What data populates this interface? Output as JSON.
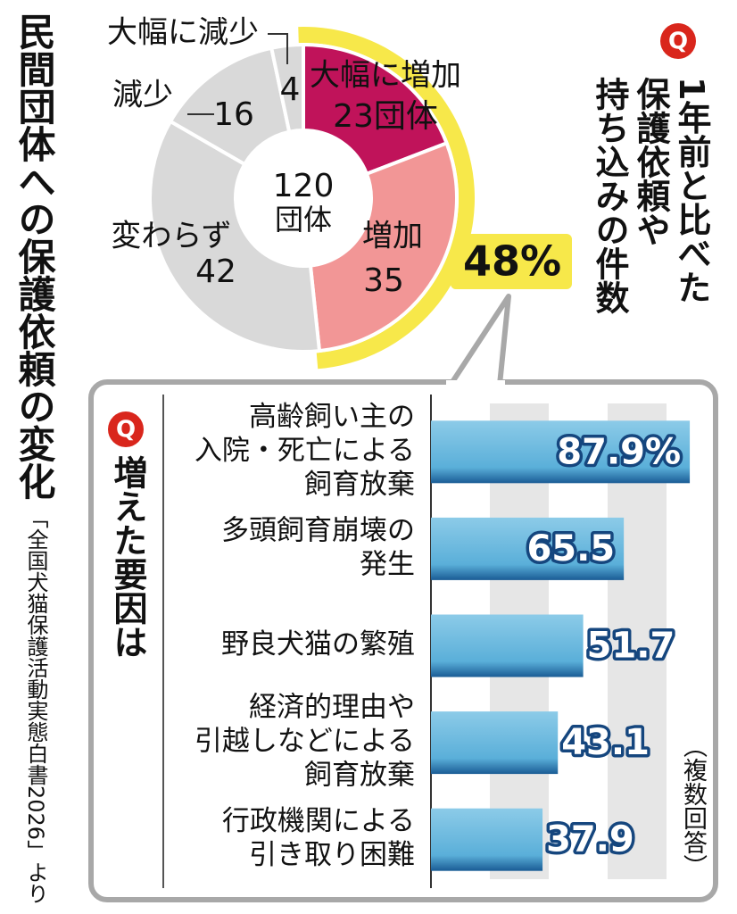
{
  "title": "民間団体への保護依頼の変化",
  "source": "「全国犬猫保護活動実態白書2026」より",
  "question_marker": "Q",
  "chart_data": [
    {
      "type": "pie",
      "title": [
        "1年前と比べた",
        "保護依頼や",
        "持ち込みの件数"
      ],
      "total": "120",
      "total_unit": "団体",
      "categories": [
        "大幅に増加",
        "増加",
        "変わらず",
        "減少",
        "大幅に減少"
      ],
      "values": [
        23,
        35,
        42,
        16,
        4
      ],
      "value_labels": [
        "23団体",
        "35",
        "42",
        "16",
        "4"
      ],
      "colors": [
        "#c0135a",
        "#f29696",
        "#d9d9d9",
        "#d9d9d9",
        "#d9d9d9"
      ],
      "highlight_label": "48%"
    },
    {
      "type": "bar",
      "horizontal": true,
      "title": "増えた要因は",
      "note": "（複数回答）",
      "categories": [
        [
          "高齢飼い主の",
          "入院・死亡による",
          "飼育放棄"
        ],
        [
          "多頭飼育崩壊の",
          "発生"
        ],
        [
          "野良犬猫の繁殖"
        ],
        [
          "経済的理由や",
          "引越しなどによる",
          "飼育放棄"
        ],
        [
          "行政機関による",
          "引き取り困難"
        ]
      ],
      "values": [
        87.9,
        65.5,
        51.7,
        43.1,
        37.9
      ],
      "value_labels": [
        "87.9%",
        "65.5",
        "51.7",
        "43.1",
        "37.9"
      ],
      "color": "#6cb9de",
      "xlim": [
        0,
        100
      ],
      "xticks": [
        0,
        20,
        40,
        60,
        80
      ],
      "grid": true
    }
  ]
}
